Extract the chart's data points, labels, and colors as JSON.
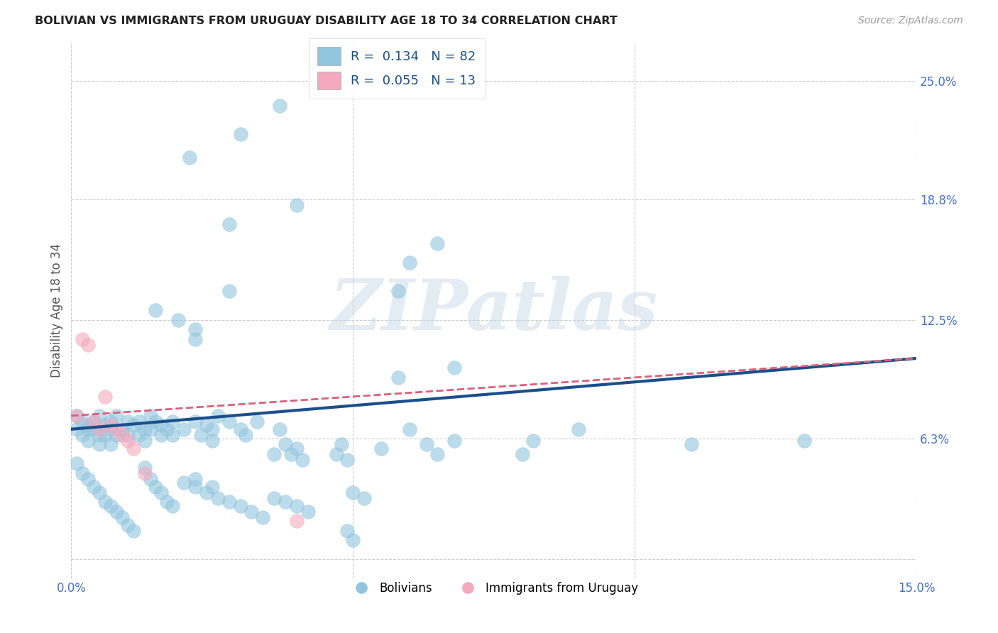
{
  "title": "BOLIVIAN VS IMMIGRANTS FROM URUGUAY DISABILITY AGE 18 TO 34 CORRELATION CHART",
  "source": "Source: ZipAtlas.com",
  "ylabel": "Disability Age 18 to 34",
  "xlim": [
    0.0,
    0.15
  ],
  "ylim": [
    -0.01,
    0.27
  ],
  "ytick_positions": [
    0.0,
    0.063,
    0.125,
    0.188,
    0.25
  ],
  "ytick_labels": [
    "",
    "6.3%",
    "12.5%",
    "18.8%",
    "25.0%"
  ],
  "color_blue": "#92c5de",
  "color_pink": "#f4a9be",
  "line_color_blue": "#1a4f8a",
  "line_color_pink": "#d9617a",
  "watermark": "ZIPatlas",
  "blue_r": "R = ",
  "blue_rv": "0.134",
  "blue_n": "N = ",
  "blue_nv": "82",
  "pink_r": "R = ",
  "pink_rv": "0.055",
  "pink_n": "N = ",
  "pink_nv": "13",
  "bolivians_x": [
    0.037,
    0.021,
    0.03,
    0.04,
    0.028,
    0.065,
    0.028,
    0.015,
    0.019,
    0.022,
    0.022,
    0.06,
    0.058,
    0.068,
    0.058,
    0.001,
    0.001,
    0.002,
    0.002,
    0.003,
    0.003,
    0.003,
    0.004,
    0.004,
    0.005,
    0.005,
    0.005,
    0.006,
    0.006,
    0.007,
    0.007,
    0.007,
    0.008,
    0.008,
    0.009,
    0.01,
    0.01,
    0.011,
    0.012,
    0.012,
    0.013,
    0.013,
    0.014,
    0.014,
    0.015,
    0.016,
    0.016,
    0.017,
    0.018,
    0.018,
    0.02,
    0.022,
    0.023,
    0.024,
    0.025,
    0.025,
    0.026,
    0.028,
    0.03,
    0.031,
    0.033,
    0.036,
    0.037,
    0.038,
    0.039,
    0.04,
    0.041,
    0.047,
    0.048,
    0.049,
    0.055,
    0.06,
    0.063,
    0.065,
    0.068,
    0.08,
    0.082,
    0.09,
    0.11,
    0.13,
    0.049,
    0.05
  ],
  "bolivians_y": [
    0.237,
    0.21,
    0.222,
    0.185,
    0.175,
    0.165,
    0.14,
    0.13,
    0.125,
    0.12,
    0.115,
    0.155,
    0.14,
    0.1,
    0.095,
    0.075,
    0.068,
    0.072,
    0.065,
    0.07,
    0.068,
    0.062,
    0.072,
    0.068,
    0.075,
    0.065,
    0.06,
    0.07,
    0.065,
    0.072,
    0.068,
    0.06,
    0.075,
    0.065,
    0.068,
    0.072,
    0.065,
    0.07,
    0.072,
    0.065,
    0.068,
    0.062,
    0.075,
    0.068,
    0.072,
    0.07,
    0.065,
    0.068,
    0.072,
    0.065,
    0.068,
    0.072,
    0.065,
    0.07,
    0.068,
    0.062,
    0.075,
    0.072,
    0.068,
    0.065,
    0.072,
    0.055,
    0.068,
    0.06,
    0.055,
    0.058,
    0.052,
    0.055,
    0.06,
    0.052,
    0.058,
    0.068,
    0.06,
    0.055,
    0.062,
    0.055,
    0.062,
    0.068,
    0.06,
    0.062,
    0.015,
    0.01
  ],
  "bolivians_y_low": [
    0.05,
    0.045,
    0.042,
    0.038,
    0.035,
    0.03,
    0.028,
    0.025,
    0.022,
    0.018,
    0.015,
    0.048,
    0.042,
    0.038,
    0.035,
    0.03,
    0.028,
    0.04,
    0.038,
    0.035,
    0.032,
    0.03,
    0.028,
    0.025,
    0.022,
    0.032,
    0.03,
    0.028,
    0.025,
    0.035,
    0.032,
    0.042,
    0.038
  ],
  "bolivians_x_low": [
    0.001,
    0.002,
    0.003,
    0.004,
    0.005,
    0.006,
    0.007,
    0.008,
    0.009,
    0.01,
    0.011,
    0.013,
    0.014,
    0.015,
    0.016,
    0.017,
    0.018,
    0.02,
    0.022,
    0.024,
    0.026,
    0.028,
    0.03,
    0.032,
    0.034,
    0.036,
    0.038,
    0.04,
    0.042,
    0.05,
    0.052,
    0.022,
    0.025
  ],
  "uruguay_x": [
    0.001,
    0.002,
    0.003,
    0.004,
    0.005,
    0.006,
    0.007,
    0.008,
    0.009,
    0.01,
    0.011,
    0.013,
    0.04
  ],
  "uruguay_y": [
    0.075,
    0.115,
    0.112,
    0.072,
    0.068,
    0.085,
    0.07,
    0.068,
    0.065,
    0.062,
    0.058,
    0.045,
    0.02
  ],
  "trend_blue_x0": 0.0,
  "trend_blue_y0": 0.068,
  "trend_blue_x1": 0.15,
  "trend_blue_y1": 0.105,
  "trend_pink_x0": 0.0,
  "trend_pink_y0": 0.075,
  "trend_pink_x1": 0.15,
  "trend_pink_y1": 0.105
}
